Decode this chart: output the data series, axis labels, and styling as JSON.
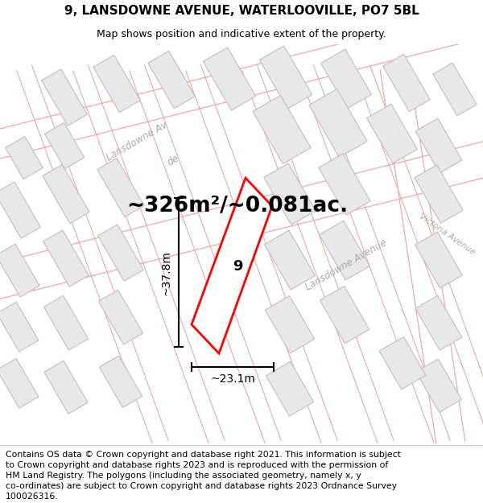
{
  "title": "9, LANSDOWNE AVENUE, WATERLOOVILLE, PO7 5BL",
  "subtitle": "Map shows position and indicative extent of the property.",
  "area_text": "~326m²/~0.081ac.",
  "dim_width": "~23.1m",
  "dim_height": "~37.8m",
  "property_number": "9",
  "footer_line1": "Contains OS data © Crown copyright and database right 2021. This information is subject",
  "footer_line2": "to Crown copyright and database rights 2023 and is reproduced with the permission of",
  "footer_line3": "HM Land Registry. The polygons (including the associated geometry, namely x, y",
  "footer_line4": "co-ordinates) are subject to Crown copyright and database rights 2023 Ordnance Survey",
  "footer_line5": "100026316.",
  "map_bg": "#ffffff",
  "building_fill": "#e8e8e8",
  "building_edge": "#ccbbbb",
  "road_fill": "#ffffff",
  "road_edge": "#e8aaaa",
  "highlight_color": "#ff0000",
  "street_label_color": "#aaaaaa",
  "title_fontsize": 11,
  "subtitle_fontsize": 9,
  "area_fontsize": 19,
  "footer_fontsize": 7.8,
  "street_label_fontsize": 8.5,
  "dim_fontsize": 10
}
